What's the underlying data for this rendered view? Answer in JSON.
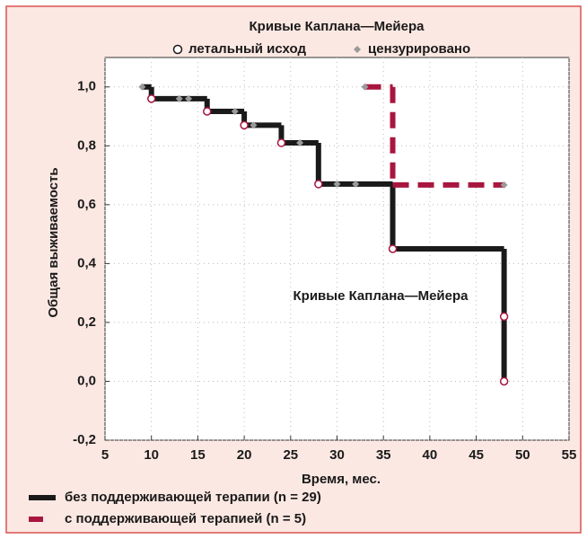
{
  "chart_data": {
    "type": "step",
    "title": "Кривые Каплана—Мейера",
    "annotation": "Кривые Каплана—Мейера",
    "xlabel": "Время, мес.",
    "ylabel": "Общая выживаемость",
    "xlim": [
      5,
      55
    ],
    "xticks": [
      5,
      10,
      15,
      20,
      25,
      30,
      35,
      40,
      45,
      50,
      55
    ],
    "ylim": [
      -0.2,
      1.1
    ],
    "yticks": [
      {
        "value": -0.2,
        "label": "-0,2"
      },
      {
        "value": 0,
        "label": "0,0"
      },
      {
        "value": 0.2,
        "label": "0,2"
      },
      {
        "value": 0.4,
        "label": "0,4"
      },
      {
        "value": 0.6,
        "label": "0,6"
      },
      {
        "value": 0.8,
        "label": "0,8"
      },
      {
        "value": 1.0,
        "label": "1,0"
      }
    ],
    "grid": true,
    "series": [
      {
        "name": "без поддерживающей терапии (n = 29)",
        "color": "#1a1a1a",
        "dashed": false,
        "x": [
          9,
          10,
          16,
          20,
          24,
          28,
          36,
          48
        ],
        "values": [
          1.0,
          0.96,
          0.917,
          0.87,
          0.81,
          0.67,
          0.45,
          0.0
        ]
      },
      {
        "name": "с поддерживающей терапией (n = 5)",
        "color": "#a8163f",
        "dashed": true,
        "x": [
          33,
          36,
          48
        ],
        "values": [
          1.0,
          0.667,
          0.667
        ]
      }
    ],
    "markers": [
      {
        "name": "летальный исход",
        "shape": "circle",
        "color": "#a8163f",
        "x": [
          10,
          16,
          20,
          24,
          28,
          36,
          48,
          48
        ],
        "values": [
          0.96,
          0.917,
          0.87,
          0.81,
          0.67,
          0.45,
          0.22,
          0.0
        ]
      },
      {
        "name": "цензурировано",
        "shape": "diamond",
        "color": "#9a9a9a",
        "x": [
          9,
          13,
          14,
          19,
          21,
          26,
          30,
          32,
          33,
          48
        ],
        "values": [
          1.0,
          0.96,
          0.96,
          0.917,
          0.87,
          0.81,
          0.67,
          0.67,
          1.0,
          0.667
        ]
      }
    ]
  }
}
